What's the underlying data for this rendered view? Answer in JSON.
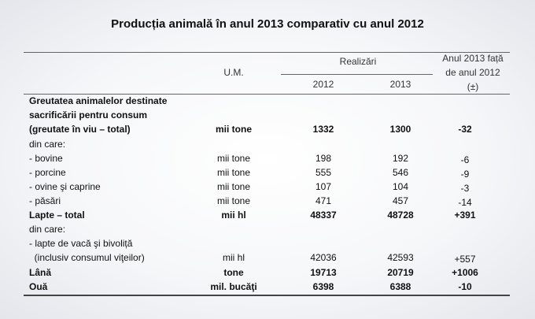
{
  "title": "Producția animală în anul 2013  comparativ cu anul 2012",
  "header": {
    "um": "U.M.",
    "realizari": "Realizări",
    "y2012": "2012",
    "y2013": "2013",
    "diff_line1": "Anul 2013 față",
    "diff_line2": "de anul 2012",
    "diff_line3": "(±)"
  },
  "rows": [
    {
      "label": "Greutatea animalelor destinate",
      "um": "",
      "v2012": "",
      "v2013": "",
      "diff": "",
      "bold": true
    },
    {
      "label": "sacrificării pentru consum",
      "um": "",
      "v2012": "",
      "v2013": "",
      "diff": "",
      "bold": true
    },
    {
      "label": "(greutate în viu – total)",
      "um": "mii tone",
      "v2012": "1332",
      "v2013": "1300",
      "diff": "-32",
      "bold": true
    },
    {
      "label": "din care:",
      "um": "",
      "v2012": "",
      "v2013": "",
      "diff": "",
      "bold": false
    },
    {
      "label": "- bovine",
      "um": "mii tone",
      "v2012": "198",
      "v2013": "192",
      "diff": "-6",
      "bold": false
    },
    {
      "label": "- porcine",
      "um": "mii tone",
      "v2012": "555",
      "v2013": "546",
      "diff": "-9",
      "bold": false
    },
    {
      "label": "- ovine şi caprine",
      "um": "mii tone",
      "v2012": "107",
      "v2013": "104",
      "diff": "-3",
      "bold": false
    },
    {
      "label": "- păsări",
      "um": "mii tone",
      "v2012": "471",
      "v2013": "457",
      "diff": "-14",
      "bold": false
    },
    {
      "label": "Lapte – total",
      "um": "mii hl",
      "v2012": "48337",
      "v2013": "48728",
      "diff": "+391",
      "bold": true
    },
    {
      "label": "din care:",
      "um": "",
      "v2012": "",
      "v2013": "",
      "diff": "",
      "bold": false
    },
    {
      "label": "- lapte de vacă şi bivoliță",
      "um": "",
      "v2012": "",
      "v2013": "",
      "diff": "",
      "bold": false
    },
    {
      "label": "  (inclusiv consumul viţeilor)",
      "um": "mii hl",
      "v2012": "42036",
      "v2013": "42593",
      "diff": "+557",
      "bold": false
    },
    {
      "label": "Lână",
      "um": "tone",
      "v2012": "19713",
      "v2013": "20719",
      "diff": "+1006",
      "bold": true
    },
    {
      "label": "Ouă",
      "um": "mil. bucăţi",
      "v2012": "6398",
      "v2013": "6388",
      "diff": "-10",
      "bold": true
    }
  ]
}
